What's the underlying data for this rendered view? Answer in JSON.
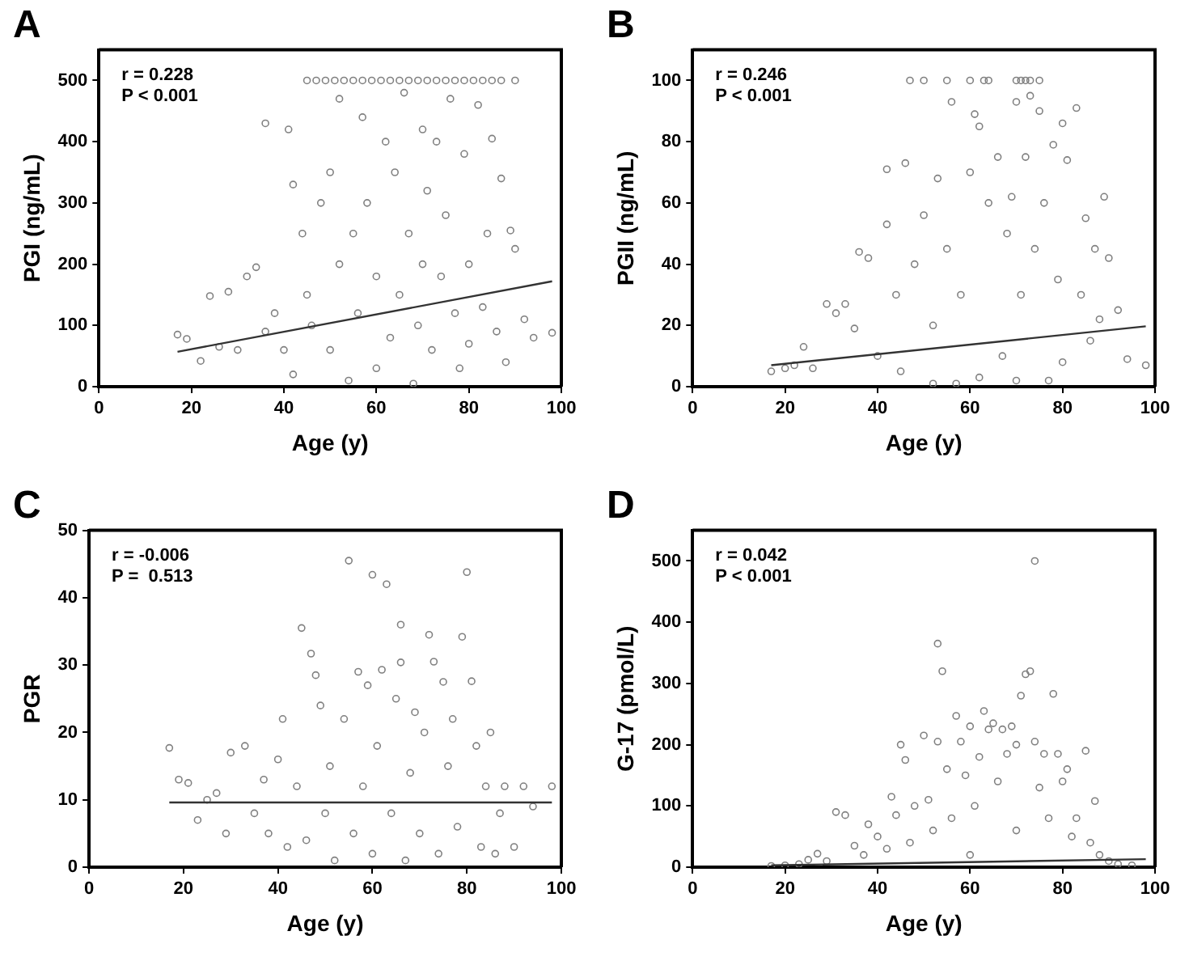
{
  "chart_data": [
    {
      "type": "scatter",
      "title": "A",
      "xlabel": "Age (y)",
      "ylabel": "PGI (ng/mL)",
      "xlim": [
        0,
        100
      ],
      "xticks": [
        0,
        20,
        40,
        60,
        80,
        100
      ],
      "ylim": [
        0,
        550
      ],
      "yticks": [
        0,
        100,
        200,
        300,
        400,
        500
      ],
      "grid": false,
      "annotations": [
        "r = 0.228",
        "P < 0.001"
      ],
      "series": [
        {
          "type": "scatter",
          "marker": "circle",
          "color": "#808080",
          "x": [
            45,
            47,
            49,
            51,
            53,
            55,
            57,
            59,
            61,
            63,
            65,
            67,
            69,
            71,
            73,
            75,
            77,
            79,
            81,
            83,
            85,
            87,
            90,
            17,
            19,
            22,
            24,
            26,
            28,
            30,
            32,
            34,
            36,
            36,
            38,
            40,
            41,
            42,
            42,
            44,
            45,
            46,
            48,
            50,
            50,
            52,
            52,
            54,
            55,
            56,
            57,
            58,
            60,
            60,
            62,
            63,
            64,
            65,
            66,
            67,
            68,
            69,
            70,
            70,
            71,
            72,
            73,
            74,
            75,
            76,
            77,
            78,
            79,
            80,
            80,
            82,
            83,
            84,
            85,
            86,
            87,
            88,
            89,
            90,
            92,
            94,
            98
          ],
          "values": [
            500,
            500,
            500,
            500,
            500,
            500,
            500,
            500,
            500,
            500,
            500,
            500,
            500,
            500,
            500,
            500,
            500,
            500,
            500,
            500,
            500,
            500,
            500,
            85,
            78,
            42,
            148,
            65,
            155,
            60,
            180,
            195,
            430,
            90,
            120,
            60,
            420,
            330,
            20,
            250,
            150,
            100,
            300,
            350,
            60,
            470,
            200,
            10,
            250,
            120,
            440,
            300,
            180,
            30,
            400,
            80,
            350,
            150,
            480,
            250,
            5,
            100,
            420,
            200,
            320,
            60,
            400,
            180,
            280,
            470,
            120,
            30,
            380,
            200,
            70,
            460,
            130,
            250,
            405,
            90,
            340,
            40,
            255,
            225,
            110,
            80,
            88
          ]
        },
        {
          "type": "line",
          "color": "#333333",
          "x": [
            17,
            98
          ],
          "values": [
            57,
            172
          ]
        }
      ]
    },
    {
      "type": "scatter",
      "title": "B",
      "xlabel": "Age (y)",
      "ylabel": "PGII (ng/mL)",
      "xlim": [
        0,
        100
      ],
      "xticks": [
        0,
        20,
        40,
        60,
        80,
        100
      ],
      "ylim": [
        0,
        110
      ],
      "yticks": [
        0,
        20,
        40,
        60,
        80,
        100
      ],
      "grid": false,
      "annotations": [
        "r = 0.246",
        "P < 0.001"
      ],
      "series": [
        {
          "type": "scatter",
          "marker": "circle",
          "color": "#808080",
          "x": [
            47,
            50,
            55,
            60,
            63,
            64,
            70,
            71,
            72,
            73,
            75,
            17,
            20,
            22,
            24,
            26,
            29,
            31,
            33,
            35,
            36,
            38,
            40,
            42,
            42,
            44,
            45,
            46,
            48,
            50,
            52,
            52,
            53,
            55,
            56,
            57,
            58,
            60,
            61,
            62,
            62,
            64,
            66,
            67,
            68,
            69,
            70,
            70,
            71,
            72,
            73,
            74,
            75,
            76,
            77,
            78,
            79,
            80,
            80,
            81,
            83,
            84,
            85,
            86,
            87,
            88,
            89,
            90,
            92,
            94,
            98
          ],
          "values": [
            100,
            100,
            100,
            100,
            100,
            100,
            100,
            100,
            100,
            100,
            100,
            5,
            6,
            7,
            13,
            6,
            27,
            24,
            27,
            19,
            44,
            42,
            10,
            71,
            53,
            30,
            5,
            73,
            40,
            56,
            20,
            1,
            68,
            45,
            93,
            1,
            30,
            70,
            89,
            85,
            3,
            60,
            75,
            10,
            50,
            62,
            93,
            2,
            30,
            75,
            95,
            45,
            90,
            60,
            2,
            79,
            35,
            86,
            8,
            74,
            91,
            30,
            55,
            15,
            45,
            22,
            62,
            42,
            25,
            9,
            7
          ]
        },
        {
          "type": "line",
          "color": "#333333",
          "x": [
            17,
            98
          ],
          "values": [
            7,
            19.7
          ]
        }
      ]
    },
    {
      "type": "scatter",
      "title": "C",
      "xlabel": "Age (y)",
      "ylabel": "PGR",
      "xlim": [
        0,
        100
      ],
      "xticks": [
        0,
        20,
        40,
        60,
        80,
        100
      ],
      "ylim": [
        0,
        50
      ],
      "yticks": [
        0,
        10,
        20,
        30,
        40,
        50
      ],
      "grid": false,
      "annotations": [
        "r = -0.006",
        "P =  0.513"
      ],
      "series": [
        {
          "type": "scatter",
          "marker": "circle",
          "color": "#808080",
          "x": [
            17,
            19,
            21,
            23,
            25,
            27,
            29,
            30,
            33,
            35,
            37,
            38,
            40,
            41,
            42,
            44,
            45,
            46,
            47,
            48,
            49,
            50,
            51,
            52,
            54,
            55,
            56,
            57,
            58,
            59,
            60,
            60,
            61,
            62,
            63,
            64,
            65,
            66,
            66,
            67,
            68,
            69,
            70,
            71,
            72,
            73,
            74,
            75,
            76,
            77,
            78,
            79,
            80,
            81,
            82,
            83,
            84,
            85,
            86,
            87,
            88,
            90,
            92,
            94,
            98
          ],
          "values": [
            17.7,
            13,
            12.5,
            7,
            10,
            11,
            5,
            17,
            18,
            8,
            13,
            5,
            16,
            22,
            3,
            12,
            35.5,
            4,
            31.7,
            28.5,
            24,
            8,
            15,
            1,
            22,
            45.5,
            5,
            29,
            12,
            27,
            43.4,
            2,
            18,
            29.3,
            42,
            8,
            25,
            36,
            30.4,
            1,
            14,
            23,
            5,
            20,
            34.5,
            30.5,
            2,
            27.5,
            15,
            22,
            6,
            34.2,
            43.8,
            27.6,
            18,
            3,
            12,
            20,
            2,
            8,
            12,
            3,
            12,
            9,
            12
          ]
        },
        {
          "type": "line",
          "color": "#333333",
          "x": [
            17,
            98
          ],
          "values": [
            9.6,
            9.6
          ]
        }
      ]
    },
    {
      "type": "scatter",
      "title": "D",
      "xlabel": "Age (y)",
      "ylabel": "G-17 (pmol/L)",
      "xlim": [
        0,
        100
      ],
      "xticks": [
        0,
        20,
        40,
        60,
        80,
        100
      ],
      "ylim": [
        0,
        550
      ],
      "yticks": [
        0,
        100,
        200,
        300,
        400,
        500
      ],
      "grid": false,
      "annotations": [
        "r = 0.042",
        "P < 0.001"
      ],
      "series": [
        {
          "type": "scatter",
          "marker": "circle",
          "color": "#808080",
          "x": [
            17,
            20,
            23,
            25,
            27,
            29,
            31,
            33,
            35,
            37,
            38,
            40,
            42,
            43,
            44,
            45,
            46,
            47,
            48,
            50,
            51,
            52,
            53,
            53,
            54,
            55,
            56,
            57,
            58,
            59,
            60,
            60,
            61,
            62,
            63,
            64,
            65,
            66,
            67,
            68,
            69,
            70,
            70,
            71,
            72,
            73,
            74,
            74,
            75,
            76,
            77,
            78,
            79,
            80,
            81,
            82,
            83,
            85,
            86,
            87,
            88,
            90,
            92,
            95
          ],
          "values": [
            2,
            3,
            5,
            12,
            22,
            10,
            90,
            85,
            35,
            20,
            70,
            50,
            30,
            115,
            85,
            200,
            175,
            40,
            100,
            215,
            110,
            60,
            365,
            205,
            320,
            160,
            80,
            247,
            205,
            150,
            230,
            20,
            100,
            180,
            255,
            225,
            235,
            140,
            225,
            185,
            230,
            200,
            60,
            280,
            315,
            320,
            500,
            205,
            130,
            185,
            80,
            283,
            185,
            140,
            160,
            50,
            80,
            190,
            40,
            108,
            20,
            10,
            5,
            3
          ]
        },
        {
          "type": "line",
          "color": "#333333",
          "x": [
            17,
            98
          ],
          "values": [
            3,
            13
          ]
        }
      ]
    }
  ]
}
